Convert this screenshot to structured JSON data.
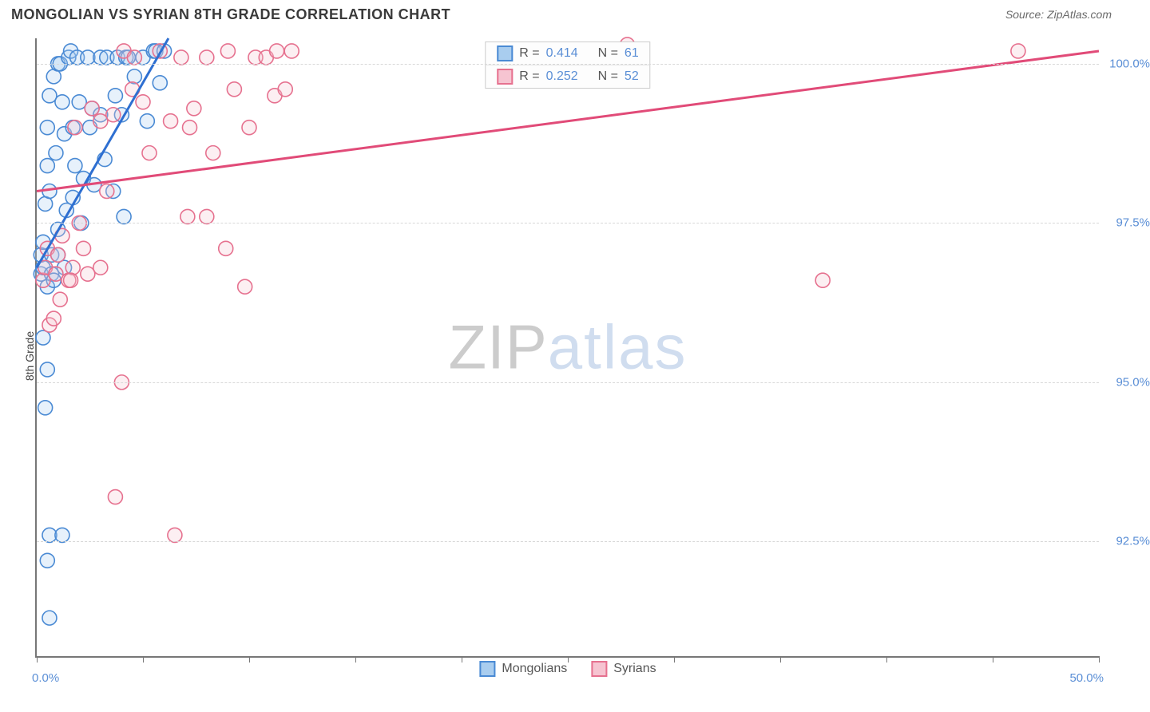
{
  "title": "MONGOLIAN VS SYRIAN 8TH GRADE CORRELATION CHART",
  "source": "Source: ZipAtlas.com",
  "watermark": {
    "part1": "ZIP",
    "part2": "atlas"
  },
  "y_axis_label": "8th Grade",
  "chart": {
    "type": "scatter",
    "xlim": [
      0,
      50
    ],
    "ylim": [
      90.7,
      100.4
    ],
    "x_ticks": [
      0,
      5,
      10,
      15,
      20,
      25,
      30,
      35,
      40,
      45,
      50
    ],
    "x_tick_labels": {
      "0": "0.0%",
      "50": "50.0%"
    },
    "y_ticks": [
      92.5,
      95.0,
      97.5,
      100.0
    ],
    "y_tick_labels": [
      "92.5%",
      "95.0%",
      "97.5%",
      "100.0%"
    ],
    "grid_color": "#d8d8d8",
    "axis_color": "#777777",
    "background_color": "#ffffff",
    "marker_radius": 9,
    "marker_fill_opacity": 0.28,
    "marker_stroke_width": 1.6,
    "line_width": 3,
    "series": [
      {
        "name": "Mongolians",
        "color_stroke": "#4a8ad4",
        "color_fill": "#a9cdef",
        "line_color": "#2e6fd1",
        "R": "0.414",
        "N": "61",
        "trend": {
          "x1": 0,
          "y1": 96.8,
          "x2": 6.2,
          "y2": 100.4
        },
        "points": [
          [
            0.2,
            97.0
          ],
          [
            0.2,
            96.7
          ],
          [
            0.3,
            96.8
          ],
          [
            0.3,
            97.2
          ],
          [
            0.4,
            97.8
          ],
          [
            0.5,
            98.4
          ],
          [
            0.5,
            99.0
          ],
          [
            0.5,
            96.5
          ],
          [
            0.6,
            99.5
          ],
          [
            0.6,
            98.0
          ],
          [
            0.7,
            97.0
          ],
          [
            0.7,
            96.7
          ],
          [
            0.8,
            99.8
          ],
          [
            0.8,
            96.6
          ],
          [
            0.9,
            98.6
          ],
          [
            1.0,
            100.0
          ],
          [
            1.0,
            97.0
          ],
          [
            1.0,
            97.4
          ],
          [
            1.1,
            100.0
          ],
          [
            1.2,
            99.4
          ],
          [
            1.3,
            96.8
          ],
          [
            1.3,
            98.9
          ],
          [
            1.4,
            97.7
          ],
          [
            1.5,
            100.1
          ],
          [
            1.6,
            100.2
          ],
          [
            1.7,
            99.0
          ],
          [
            1.7,
            97.9
          ],
          [
            1.8,
            98.4
          ],
          [
            1.9,
            100.1
          ],
          [
            2.0,
            99.4
          ],
          [
            2.1,
            97.5
          ],
          [
            2.2,
            98.2
          ],
          [
            2.4,
            100.1
          ],
          [
            2.5,
            99.0
          ],
          [
            2.6,
            99.3
          ],
          [
            2.7,
            98.1
          ],
          [
            3.0,
            100.1
          ],
          [
            3.0,
            99.2
          ],
          [
            3.2,
            98.5
          ],
          [
            3.3,
            100.1
          ],
          [
            3.6,
            98.0
          ],
          [
            3.7,
            99.5
          ],
          [
            3.8,
            100.1
          ],
          [
            4.0,
            99.2
          ],
          [
            4.1,
            97.6
          ],
          [
            4.2,
            100.1
          ],
          [
            4.3,
            100.1
          ],
          [
            4.6,
            99.8
          ],
          [
            5.0,
            100.1
          ],
          [
            5.2,
            99.1
          ],
          [
            5.5,
            100.2
          ],
          [
            5.6,
            100.2
          ],
          [
            5.8,
            99.7
          ],
          [
            6.0,
            100.2
          ],
          [
            0.3,
            95.7
          ],
          [
            0.5,
            95.2
          ],
          [
            0.4,
            94.6
          ],
          [
            0.6,
            92.6
          ],
          [
            0.5,
            92.2
          ],
          [
            0.6,
            91.3
          ],
          [
            1.2,
            92.6
          ]
        ]
      },
      {
        "name": "Syrians",
        "color_stroke": "#e6718f",
        "color_fill": "#f6c4d1",
        "line_color": "#e14b78",
        "R": "0.252",
        "N": "52",
        "trend": {
          "x1": 0,
          "y1": 98.0,
          "x2": 50,
          "y2": 100.2
        },
        "points": [
          [
            0.3,
            96.6
          ],
          [
            0.4,
            96.8
          ],
          [
            0.5,
            97.1
          ],
          [
            0.6,
            95.9
          ],
          [
            0.8,
            96.0
          ],
          [
            0.9,
            96.7
          ],
          [
            1.0,
            97.0
          ],
          [
            1.1,
            96.3
          ],
          [
            1.2,
            97.3
          ],
          [
            1.5,
            96.6
          ],
          [
            1.7,
            96.8
          ],
          [
            1.8,
            99.0
          ],
          [
            2.0,
            97.5
          ],
          [
            2.2,
            97.1
          ],
          [
            2.4,
            96.7
          ],
          [
            2.6,
            99.3
          ],
          [
            3.0,
            99.1
          ],
          [
            3.0,
            96.8
          ],
          [
            3.3,
            98.0
          ],
          [
            3.6,
            99.2
          ],
          [
            4.0,
            95.0
          ],
          [
            4.1,
            100.2
          ],
          [
            4.5,
            99.6
          ],
          [
            4.6,
            100.1
          ],
          [
            5.0,
            99.4
          ],
          [
            5.3,
            98.6
          ],
          [
            5.8,
            100.2
          ],
          [
            6.3,
            99.1
          ],
          [
            6.8,
            100.1
          ],
          [
            7.1,
            97.6
          ],
          [
            7.2,
            99.0
          ],
          [
            7.4,
            99.3
          ],
          [
            8.0,
            97.6
          ],
          [
            8.0,
            100.1
          ],
          [
            8.3,
            98.6
          ],
          [
            8.9,
            97.1
          ],
          [
            9.0,
            100.2
          ],
          [
            9.3,
            99.6
          ],
          [
            9.8,
            96.5
          ],
          [
            10.0,
            99.0
          ],
          [
            10.3,
            100.1
          ],
          [
            10.8,
            100.1
          ],
          [
            11.2,
            99.5
          ],
          [
            11.3,
            100.2
          ],
          [
            11.7,
            99.6
          ],
          [
            12.0,
            100.2
          ],
          [
            27.8,
            100.3
          ],
          [
            37.0,
            96.6
          ],
          [
            46.2,
            100.2
          ],
          [
            3.7,
            93.2
          ],
          [
            6.5,
            92.6
          ],
          [
            1.6,
            96.6
          ]
        ]
      }
    ]
  },
  "legend_top": {
    "R_label": "R =",
    "N_label": "N ="
  },
  "legend_bottom": {
    "items": [
      "Mongolians",
      "Syrians"
    ]
  }
}
